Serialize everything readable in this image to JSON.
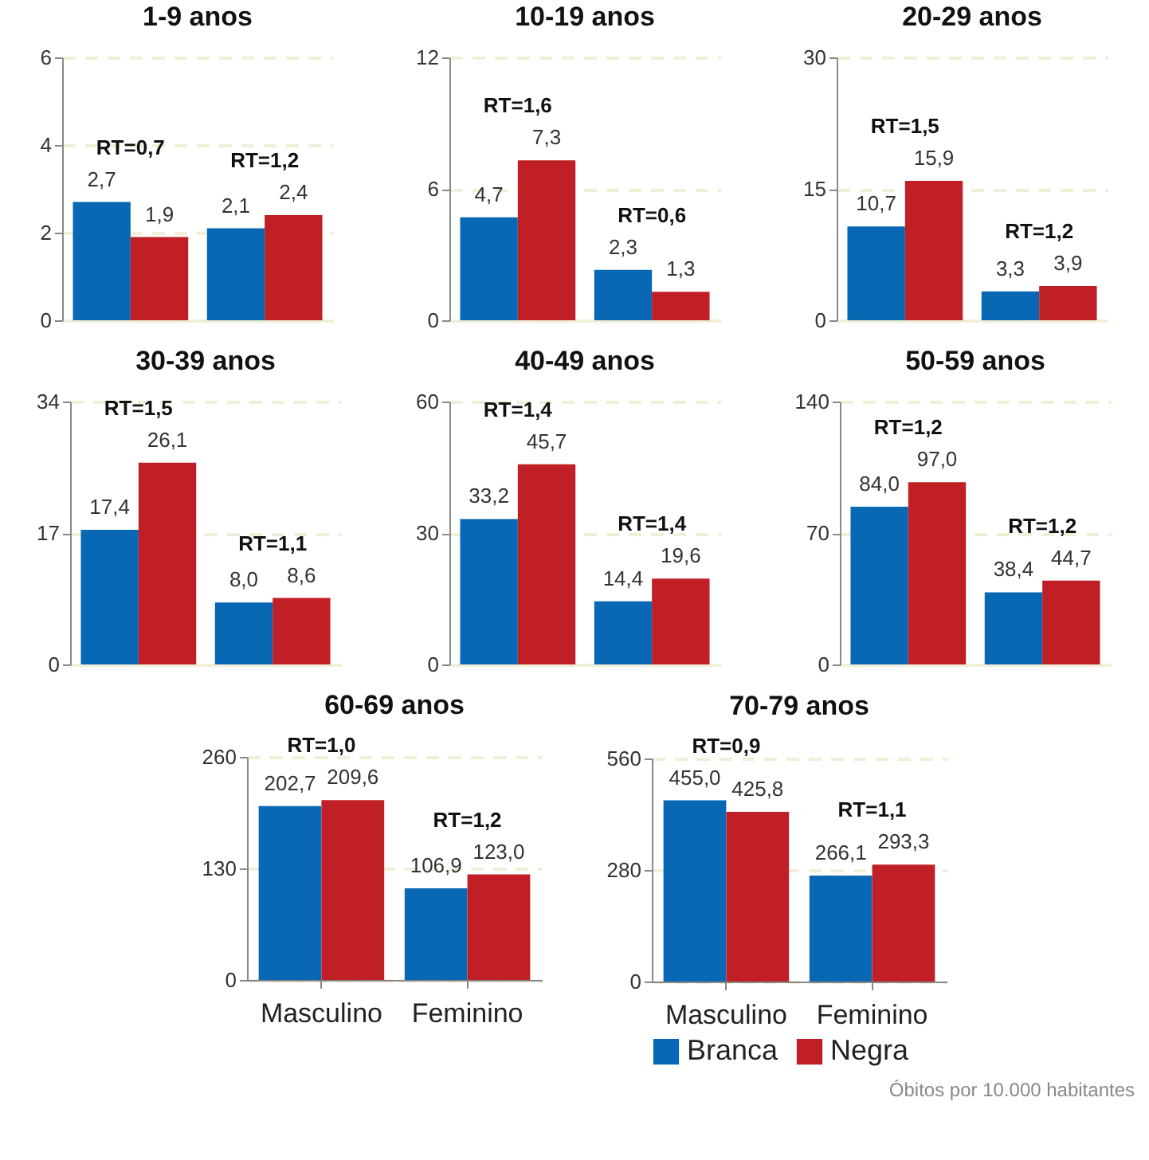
{
  "chart_data": [
    {
      "type": "bar",
      "title": "1-9 anos",
      "categories": [
        null,
        null
      ],
      "series": [
        {
          "color": "#0868b4",
          "values": [
            2.7,
            2.1
          ],
          "value_labels": [
            "2,7",
            "2,1"
          ]
        },
        {
          "color": "#c01f25",
          "values": [
            1.9,
            2.4
          ],
          "value_labels": [
            "1,9",
            "2,4"
          ]
        }
      ],
      "ylim": [
        0,
        6
      ],
      "yticks": [
        0,
        2,
        4,
        6
      ],
      "grid": "y",
      "tick_labels": "y",
      "annotations": [
        "RT=0,7",
        "RT=1,2"
      ]
    },
    {
      "type": "bar",
      "title": "10-19 anos",
      "categories": [
        null,
        null
      ],
      "series": [
        {
          "color": "#0868b4",
          "values": [
            4.7,
            2.3
          ],
          "value_labels": [
            "4,7",
            "2,3"
          ]
        },
        {
          "color": "#c01f25",
          "values": [
            7.3,
            1.3
          ],
          "value_labels": [
            "7,3",
            "1,3"
          ]
        }
      ],
      "ylim": [
        0,
        12
      ],
      "yticks": [
        0,
        6,
        12
      ],
      "grid": "y",
      "tick_labels": "y",
      "annotations": [
        "RT=1,6",
        "RT=0,6"
      ]
    },
    {
      "type": "bar",
      "title": "20-29 anos",
      "categories": [
        null,
        null
      ],
      "series": [
        {
          "color": "#0868b4",
          "values": [
            10.7,
            3.3
          ],
          "value_labels": [
            "10,7",
            "3,3"
          ]
        },
        {
          "color": "#c01f25",
          "values": [
            15.9,
            3.9
          ],
          "value_labels": [
            "15,9",
            "3,9"
          ]
        }
      ],
      "ylim": [
        0,
        30
      ],
      "yticks": [
        0,
        15,
        30
      ],
      "grid": "y",
      "tick_labels": "y",
      "annotations": [
        "RT=1,5",
        "RT=1,2"
      ]
    },
    {
      "type": "bar",
      "title": "30-39 anos",
      "categories": [
        null,
        null
      ],
      "series": [
        {
          "color": "#0868b4",
          "values": [
            17.4,
            8.0
          ],
          "value_labels": [
            "17,4",
            "8,0"
          ]
        },
        {
          "color": "#c01f25",
          "values": [
            26.1,
            8.6
          ],
          "value_labels": [
            "26,1",
            "8,6"
          ]
        }
      ],
      "ylim": [
        0,
        34
      ],
      "yticks": [
        0,
        17,
        34
      ],
      "grid": "y",
      "tick_labels": "y",
      "annotations": [
        "RT=1,5",
        "RT=1,1"
      ]
    },
    {
      "type": "bar",
      "title": "40-49 anos",
      "categories": [
        null,
        null
      ],
      "series": [
        {
          "color": "#0868b4",
          "values": [
            33.2,
            14.4
          ],
          "value_labels": [
            "33,2",
            "14,4"
          ]
        },
        {
          "color": "#c01f25",
          "values": [
            45.7,
            19.6
          ],
          "value_labels": [
            "45,7",
            "19,6"
          ]
        }
      ],
      "ylim": [
        0,
        60
      ],
      "yticks": [
        0,
        30,
        60
      ],
      "grid": "y",
      "tick_labels": "y",
      "annotations": [
        "RT=1,4",
        "RT=1,4"
      ]
    },
    {
      "type": "bar",
      "title": "50-59 anos",
      "categories": [
        null,
        null
      ],
      "series": [
        {
          "color": "#0868b4",
          "values": [
            84.0,
            38.4
          ],
          "value_labels": [
            "84,0",
            "38,4"
          ]
        },
        {
          "color": "#c01f25",
          "values": [
            97.0,
            44.7
          ],
          "value_labels": [
            "97,0",
            "44,7"
          ]
        }
      ],
      "ylim": [
        0,
        140
      ],
      "yticks": [
        0,
        70,
        140
      ],
      "grid": "y",
      "tick_labels": "y",
      "annotations": [
        "RT=1,2",
        "RT=1,2"
      ]
    },
    {
      "type": "bar",
      "title": "60-69 anos",
      "categories": [
        "Masculino",
        "Feminino"
      ],
      "series": [
        {
          "color": "#0868b4",
          "values": [
            202.7,
            106.9
          ],
          "value_labels": [
            "202,7",
            "106,9"
          ]
        },
        {
          "color": "#c01f25",
          "values": [
            209.6,
            123.0
          ],
          "value_labels": [
            "209,6",
            "123,0"
          ]
        }
      ],
      "ylim": [
        0,
        260
      ],
      "yticks": [
        0,
        130,
        260
      ],
      "grid": "y",
      "annotations": [
        "RT=1,0",
        "RT=1,2"
      ]
    },
    {
      "type": "bar",
      "title": "70-79 anos",
      "categories": [
        "Masculino",
        "Feminino"
      ],
      "series": [
        {
          "name": "Branca",
          "color": "#0868b4",
          "values": [
            455.0,
            266.1
          ],
          "value_labels": [
            "455,0",
            "266,1"
          ]
        },
        {
          "name": "Negra",
          "color": "#c01f25",
          "values": [
            425.8,
            293.3
          ],
          "value_labels": [
            "425,8",
            "293,3"
          ]
        }
      ],
      "ylim": [
        0,
        560
      ],
      "yticks": [
        0,
        280,
        560
      ],
      "grid": "y",
      "legend": "bottom",
      "annotations": [
        "RT=0,9",
        "RT=1,1",
        "Óbitos por 10.000 habitantes"
      ]
    }
  ]
}
